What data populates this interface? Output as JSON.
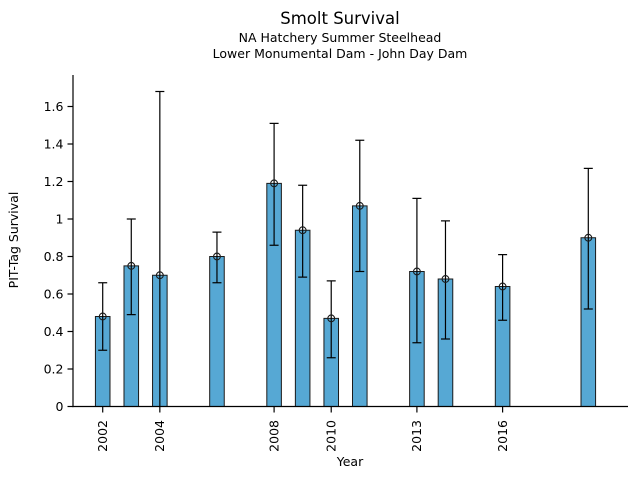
{
  "chart_data": {
    "type": "bar",
    "title": "Smolt Survival",
    "subtitle1": "NA Hatchery Summer Steelhead",
    "subtitle2": "Lower Monumental Dam - John Day Dam",
    "xlabel": "Year",
    "ylabel": "PIT-Tag Survival",
    "grid": false,
    "legend": "none",
    "marker": "open-circle",
    "bar_color": "#56a8d4",
    "bar_edge_color": "#1a1a1a",
    "error_color": "#000000",
    "text_color": "#000000",
    "xlim": [
      2000.96,
      2020.39
    ],
    "ylim": [
      0,
      1.768
    ],
    "bar_width_years": 0.51,
    "x_tick_labels": [
      "2002",
      "2004",
      "2008",
      "2010",
      "2013",
      "2016"
    ],
    "y_ticks": [
      0,
      0.2,
      0.4,
      0.6,
      0.8,
      1,
      1.2,
      1.4,
      1.6
    ],
    "y_tick_labels": [
      "0",
      "0.2",
      "0.4",
      "0.6",
      "0.8",
      "1",
      "1.2",
      "1.4",
      "1.6"
    ],
    "series": [
      {
        "year": 2002,
        "value": 0.48,
        "ci_low": 0.3,
        "ci_high": 0.66
      },
      {
        "year": 2003,
        "value": 0.75,
        "ci_low": 0.49,
        "ci_high": 1.0
      },
      {
        "year": 2004,
        "value": 0.7,
        "ci_low": 0.0,
        "ci_high": 1.68
      },
      {
        "year": 2006,
        "value": 0.8,
        "ci_low": 0.66,
        "ci_high": 0.93
      },
      {
        "year": 2008,
        "value": 1.19,
        "ci_low": 0.86,
        "ci_high": 1.51
      },
      {
        "year": 2009,
        "value": 0.94,
        "ci_low": 0.69,
        "ci_high": 1.18
      },
      {
        "year": 2010,
        "value": 0.47,
        "ci_low": 0.26,
        "ci_high": 0.67
      },
      {
        "year": 2011,
        "value": 1.07,
        "ci_low": 0.72,
        "ci_high": 1.42
      },
      {
        "year": 2013,
        "value": 0.72,
        "ci_low": 0.34,
        "ci_high": 1.11
      },
      {
        "year": 2014,
        "value": 0.68,
        "ci_low": 0.36,
        "ci_high": 0.99
      },
      {
        "year": 2016,
        "value": 0.64,
        "ci_low": 0.46,
        "ci_high": 0.81
      },
      {
        "year": 2019,
        "value": 0.9,
        "ci_low": 0.52,
        "ci_high": 1.27
      }
    ]
  }
}
